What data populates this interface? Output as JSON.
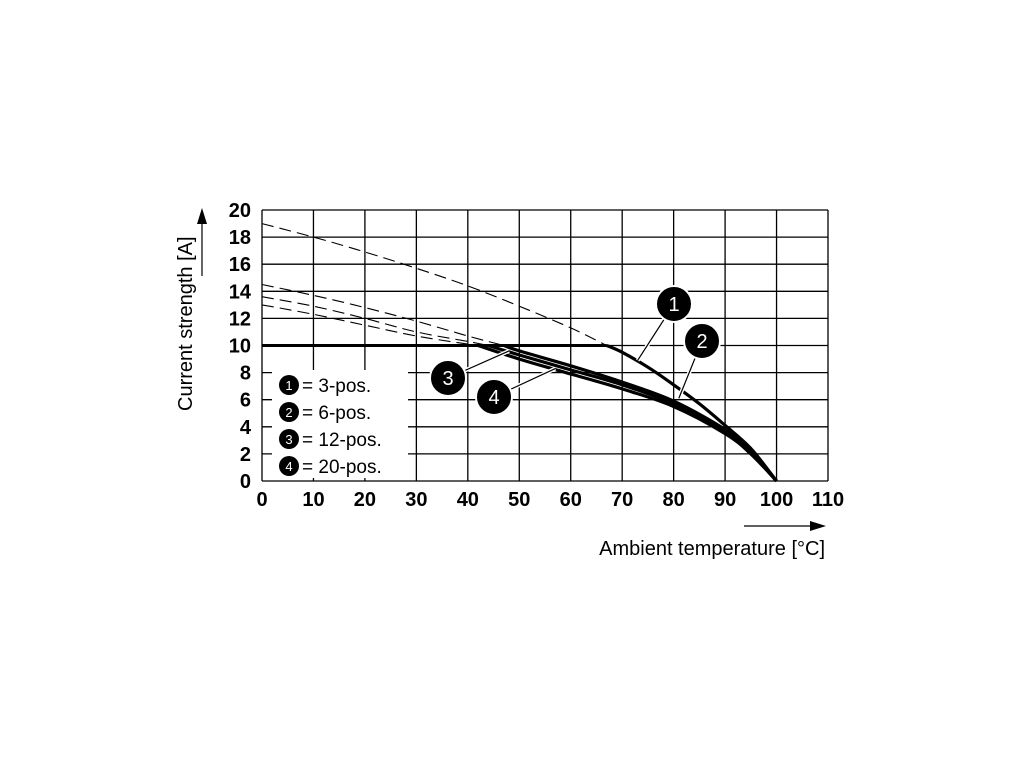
{
  "chart_data": {
    "type": "line",
    "xlabel": "Ambient temperature [°C]",
    "ylabel": "Current strength [A]",
    "xlim": [
      0,
      110
    ],
    "ylim": [
      0,
      20
    ],
    "x_ticks": [
      "0",
      "10",
      "20",
      "30",
      "40",
      "50",
      "60",
      "70",
      "80",
      "90",
      "100",
      "110"
    ],
    "y_ticks": [
      "0",
      "2",
      "4",
      "6",
      "8",
      "10",
      "12",
      "14",
      "16",
      "18",
      "20"
    ],
    "grid": true,
    "current_limit": 10,
    "legend_placement": "lower-left",
    "legend": [
      {
        "marker": "1",
        "label": "= 3-pos."
      },
      {
        "marker": "2",
        "label": "= 6-pos."
      },
      {
        "marker": "3",
        "label": "= 12-pos."
      },
      {
        "marker": "4",
        "label": "= 20-pos."
      }
    ],
    "series": [
      {
        "marker": "1",
        "x": [
          0,
          10,
          20,
          30,
          40,
          50,
          60,
          67,
          70,
          75,
          80,
          85,
          90,
          95,
          100
        ],
        "y": [
          19.0,
          18.0,
          16.9,
          15.7,
          14.4,
          12.9,
          11.3,
          10.0,
          9.5,
          8.4,
          7.1,
          5.7,
          4.1,
          2.4,
          0.0
        ]
      },
      {
        "marker": "2",
        "x": [
          0,
          10,
          20,
          30,
          40,
          47,
          50,
          60,
          70,
          80,
          90,
          95,
          100
        ],
        "y": [
          14.5,
          13.7,
          12.8,
          11.8,
          10.7,
          10.0,
          9.6,
          8.5,
          7.3,
          5.9,
          3.8,
          2.2,
          0.0
        ]
      },
      {
        "marker": "3",
        "x": [
          0,
          10,
          20,
          30,
          40,
          44,
          50,
          60,
          70,
          80,
          90,
          95,
          100
        ],
        "y": [
          13.6,
          12.9,
          12.0,
          11.0,
          10.3,
          10.0,
          9.3,
          8.2,
          7.1,
          5.7,
          3.7,
          2.1,
          0.0
        ]
      },
      {
        "marker": "4",
        "x": [
          0,
          10,
          20,
          30,
          40,
          42,
          50,
          60,
          70,
          80,
          90,
          95,
          100
        ],
        "y": [
          13.0,
          12.3,
          11.5,
          10.7,
          10.1,
          10.0,
          9.0,
          7.9,
          6.8,
          5.5,
          3.5,
          2.0,
          0.0
        ]
      }
    ],
    "callouts": [
      {
        "marker": "1",
        "points_to": [
          73,
          8.9
        ]
      },
      {
        "marker": "2",
        "points_to": [
          81,
          6.1
        ]
      },
      {
        "marker": "3",
        "points_to": [
          48,
          9.6
        ]
      },
      {
        "marker": "4",
        "points_to": [
          57,
          8.3
        ]
      }
    ]
  }
}
